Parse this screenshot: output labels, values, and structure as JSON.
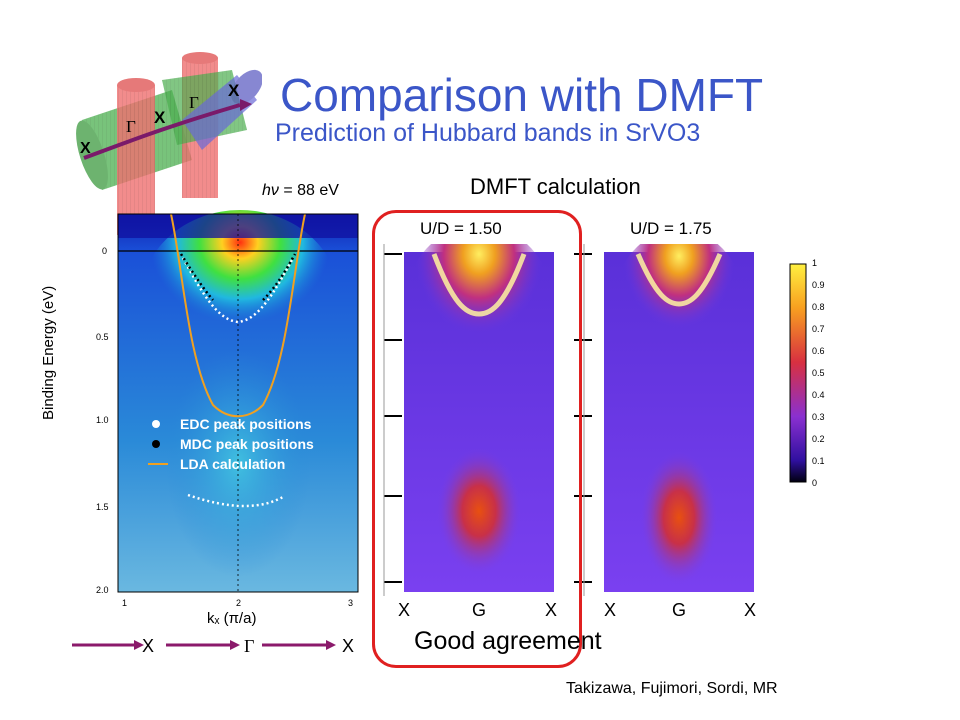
{
  "slide": {
    "title": "Comparison with DMFT",
    "subtitle": "Prediction of Hubbard bands in SrVO3",
    "credit": "Takizawa, Fujimori, Sordi, MR"
  },
  "logo": {
    "labels": [
      "X",
      "Γ",
      "X",
      "Γ",
      "X"
    ]
  },
  "arpes_panel": {
    "photon_energy": "= 88 eV",
    "photon_symbol": "hν",
    "ylabel": "Binding Energy (eV)",
    "xlabel": "kₓ (π/a)",
    "y_ticks": [
      "0",
      "0.5",
      "1.0",
      "1.5",
      "2.0"
    ],
    "x_ticks": [
      "1",
      "2",
      "3"
    ],
    "legend": [
      "EDC peak positions",
      "MDC peak positions",
      "LDA calculation"
    ],
    "path_labels": [
      "X",
      "Γ",
      "X"
    ],
    "colors": {
      "lda": "#f0a020",
      "arrow": "#8b1a6b"
    }
  },
  "dmft_panel": {
    "title": "DMFT calculation",
    "panels": [
      {
        "label": "U/D = 1.50",
        "k_labels": [
          "X",
          "G",
          "X"
        ],
        "highlighted": true
      },
      {
        "label": "U/D = 1.75",
        "k_labels": [
          "X",
          "G",
          "X"
        ],
        "highlighted": false
      }
    ],
    "colorbar_ticks": [
      "1",
      "0.9",
      "0.8",
      "0.7",
      "0.6",
      "0.5",
      "0.4",
      "0.3",
      "0.2",
      "0.1",
      "0"
    ],
    "conclusion": "Good agreement",
    "colors": {
      "highlight": "#e02020"
    }
  }
}
